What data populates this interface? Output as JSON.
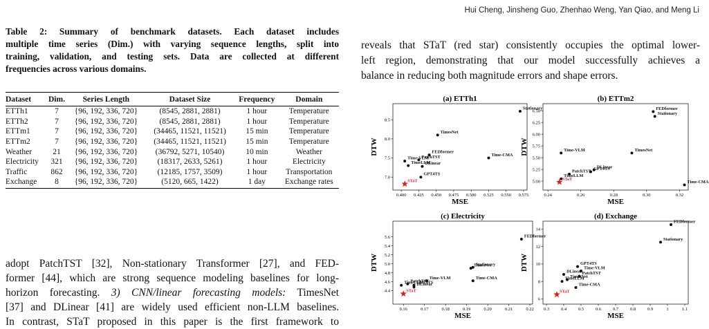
{
  "header": {
    "authors": "Hui Cheng, Jinsheng Guo, Zhenhao Weng, Yan Qiao, and Meng Li"
  },
  "table": {
    "caption": [
      "Table 2: Summary of benchmark datasets. Each dataset includes",
      "multiple time series (Dim.) with varying sequence lengths, split into",
      "training, validation, and testing sets. Data are collected at different",
      "frequencies across various domains."
    ],
    "header": [
      "Dataset",
      "Dim.",
      "Series Length",
      "Dataset Size",
      "Frequency",
      "Domain"
    ],
    "rows": [
      [
        "ETTh1",
        7,
        "{96, 192, 336, 720}",
        "(8545, 2881, 2881)",
        "1 hour",
        "Temperature"
      ],
      [
        "ETTh2",
        7,
        "{96, 192, 336, 720}",
        "(8545, 2881, 2881)",
        "1 hour",
        "Temperature"
      ],
      [
        "ETTm1",
        7,
        "{96, 192, 336, 720}",
        "(34465, 11521, 11521)",
        "15 min",
        "Temperature"
      ],
      [
        "ETTm2",
        7,
        "{96, 192, 336, 720}",
        "(34465, 11521, 11521)",
        "15 min",
        "Temperature"
      ],
      [
        "Weather",
        21,
        "{96, 192, 336, 720}",
        "(36792, 5271, 10540)",
        "10 min",
        "Weather"
      ],
      [
        "Electricity",
        321,
        "{96, 192, 336, 720}",
        "(18317, 2633, 5261)",
        "1 hour",
        "Electricity"
      ],
      [
        "Traffic",
        862,
        "{96, 192, 336, 720}",
        "(12185, 1757, 3509)",
        "1 hour",
        "Transportation"
      ],
      [
        "Exchange",
        8,
        "{96, 192, 336, 720}",
        "(5120, 665, 1422)",
        "1 day",
        "Exchange rates"
      ]
    ]
  },
  "left_text": [
    [
      "adopt PatchTST [32], Non-stationary Transformer [27], and FED-"
    ],
    [
      "former [44], which are strong sequence modeling baselines for long-"
    ],
    [
      "horizon forecasting. ",
      "3) CNN/linear forecasting models:",
      " TimesNet"
    ],
    [
      "[37] and DLinear [41] are widely used efficient non-LLM baselines."
    ],
    [
      "In contrast, STaT proposed in this paper is the first framework to"
    ]
  ],
  "right_text": [
    "reveals that STaT (red star) consistently occupies the optimal lower-",
    "left region, demonstrating that our model successfully achieves a",
    "balance in reducing both magnitude errors and shape errors."
  ],
  "figure": {
    "charts": [
      {
        "type": "scatter",
        "title": "(a) ETTh1",
        "x_label": "MSE",
        "y_label": "DTW",
        "xlim": [
          0.388,
          0.58
        ],
        "ylim": [
          6.66,
          8.92
        ],
        "xticks": [
          {
            "value": 0.4,
            "label": "0.400"
          },
          0.425,
          {
            "value": 0.45,
            "label": "0.450"
          },
          0.475,
          {
            "value": 0.5,
            "label": "0.500"
          },
          0.525,
          {
            "value": 0.55,
            "label": "0.550"
          },
          0.575
        ],
        "yticks": [
          {
            "value": 7,
            "label": "7.0"
          },
          7.5,
          {
            "value": 8,
            "label": "8.0"
          },
          8.5
        ],
        "series": [
          {
            "color": "#111111",
            "marker": "circle",
            "labels": [
              "Stationary",
              "TimesNet",
              "FEDformer",
              "PatchTST",
              "Time-VLM",
              "Time-CMA",
              "DLinear",
              "TimeLLM",
              "GPT4TS"
            ],
            "x": [
              0.57,
              0.452,
              0.44,
              0.425,
              0.405,
              0.525,
              0.43,
              0.41,
              0.428
            ],
            "y": [
              8.72,
              8.1,
              7.58,
              7.45,
              7.42,
              7.5,
              7.28,
              7.3,
              7.0
            ]
          },
          {
            "color": "#e02020",
            "marker": "star",
            "labels": [
              "STaT"
            ],
            "x": [
              0.405
            ],
            "y": [
              6.82
            ]
          }
        ]
      },
      {
        "type": "scatter",
        "title": "(b) ETTm2",
        "x_label": "MSE",
        "y_label": "DTW",
        "xlim": [
          0.237,
          0.3253
        ],
        "ylim": [
          4.81,
          6.65
        ],
        "xticks": [
          0.24,
          0.26,
          0.28,
          {
            "value": 0.3,
            "label": "0.30"
          },
          0.32
        ],
        "yticks": [
          {
            "value": 5,
            "label": "5.00"
          },
          5.25,
          {
            "value": 5.5,
            "label": "5.50"
          },
          5.75,
          {
            "value": 6,
            "label": "6.00"
          },
          6.25,
          {
            "value": 6.5,
            "label": "6.50"
          }
        ],
        "series": [
          {
            "color": "#111111",
            "marker": "circle",
            "labels": [
              "FEDformer",
              "Stationary",
              "Time-VLM",
              "TimesNet",
              "DLinear",
              "GPT4TS",
              "PatchTST",
              "TimeLLM",
              "Time-CMA"
            ],
            "x": [
              0.304,
              0.305,
              0.248,
              0.291,
              0.268,
              0.266,
              0.253,
              0.248,
              0.323
            ],
            "y": [
              6.48,
              6.38,
              5.6,
              5.6,
              5.24,
              5.2,
              5.15,
              5.05,
              4.92
            ]
          },
          {
            "color": "#e02020",
            "marker": "star",
            "labels": [
              "STaT"
            ],
            "x": [
              0.247
            ],
            "y": [
              4.98
            ]
          }
        ]
      },
      {
        "type": "scatter",
        "title": "(c) Electricity",
        "x_label": "MSE",
        "y_label": "DTW",
        "xlim": [
          0.155,
          0.2213
        ],
        "ylim": [
          4.1,
          5.95
        ],
        "xticks": [
          0.16,
          0.17,
          0.18,
          0.19,
          {
            "value": 0.2,
            "label": "0.20"
          },
          0.21,
          0.22
        ],
        "yticks": [
          4.4,
          4.6,
          4.8,
          {
            "value": 5,
            "label": "5.0"
          },
          5.2,
          5.4,
          5.6
        ],
        "series": [
          {
            "color": "#111111",
            "marker": "circle",
            "labels": [
              "FEDformer",
              "Stationary",
              "TimesNet",
              "Time-CMA",
              "Time-VLM",
              "PatchTST",
              "GPT4TS",
              "DLinear",
              "TimeLLM"
            ],
            "x": [
              0.216,
              0.193,
              0.192,
              0.193,
              0.171,
              0.162,
              0.165,
              0.165,
              0.159
            ],
            "y": [
              5.55,
              4.92,
              4.9,
              4.62,
              4.62,
              4.55,
              4.52,
              4.48,
              4.52
            ]
          },
          {
            "color": "#e02020",
            "marker": "star",
            "labels": [
              "STaT"
            ],
            "x": [
              0.16
            ],
            "y": [
              4.33
            ]
          }
        ]
      },
      {
        "type": "scatter",
        "title": "(d) Exchange",
        "x_label": "MSE",
        "y_label": "DTW",
        "xlim": [
          0.28,
          1.12
        ],
        "ylim": [
          5.4,
          14.9
        ],
        "xticks": [
          0.3,
          0.4,
          0.5,
          0.6,
          0.7,
          0.8,
          0.9,
          1.0,
          1.1
        ],
        "yticks": [
          6,
          8,
          10,
          12,
          14
        ],
        "series": [
          {
            "color": "#111111",
            "marker": "circle",
            "labels": [
              "FEDformer",
              "Stationary",
              "GPT4TS",
              "Time-VLM",
              "DLinear",
              "PatchTST",
              "TimesNet",
              "TimeLLM",
              "Time-CMA"
            ],
            "x": [
              1.02,
              0.96,
              0.48,
              0.5,
              0.4,
              0.49,
              0.42,
              0.39,
              0.47
            ],
            "y": [
              14.5,
              12.5,
              9.7,
              9.2,
              8.8,
              8.6,
              8.2,
              8.0,
              7.3
            ]
          },
          {
            "color": "#e02020",
            "marker": "star",
            "labels": [
              "STaT"
            ],
            "x": [
              0.36
            ],
            "y": [
              6.5
            ]
          }
        ]
      }
    ]
  }
}
